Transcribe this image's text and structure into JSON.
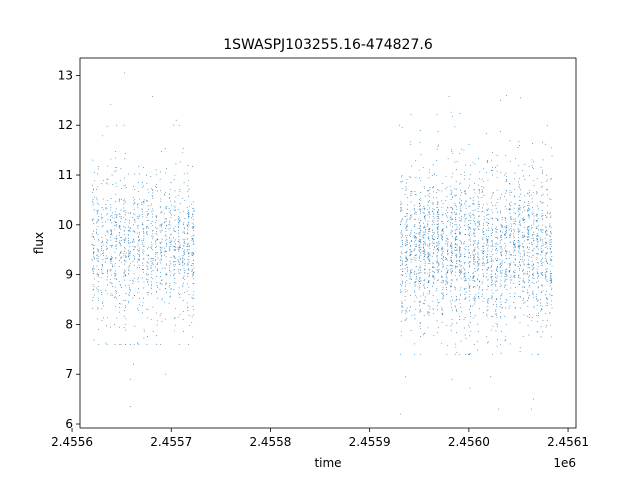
{
  "chart_data": {
    "type": "scatter",
    "title": "1SWASPJ103255.16-474827.6",
    "xlabel": "time",
    "ylabel": "flux",
    "x_offset_label": "1e6",
    "xlim": [
      2.455608,
      2.456108
    ],
    "ylim": [
      5.92,
      13.35
    ],
    "x_ticks": [
      2.4556,
      2.4557,
      2.4558,
      2.4559,
      2.456,
      2.4561
    ],
    "x_tick_labels": [
      "2.4556",
      "2.4557",
      "2.4558",
      "2.4559",
      "2.4560",
      "2.4561"
    ],
    "y_ticks": [
      6,
      7,
      8,
      9,
      10,
      11,
      12,
      13
    ],
    "y_tick_labels": [
      "6",
      "7",
      "8",
      "9",
      "10",
      "11",
      "12",
      "13"
    ],
    "grid": false,
    "legend": "none",
    "series": [
      {
        "color": "#1f77b4",
        "segments": [
          {
            "x_start": 2.455619,
            "x_end": 2.455724,
            "center": 9.55,
            "spread": 0.75,
            "range": [
              7.6,
              12.0
            ],
            "count": 1300
          },
          {
            "x_start": 2.45593,
            "x_end": 2.456085,
            "center": 9.5,
            "spread": 0.8,
            "range": [
              7.4,
              12.5
            ],
            "count": 2600
          }
        ],
        "outliers": [
          [
            2.455653,
            13.05
          ],
          [
            2.455639,
            12.42
          ],
          [
            2.455681,
            12.58
          ],
          [
            2.455705,
            12.1
          ],
          [
            2.455659,
            6.35
          ],
          [
            2.455659,
            6.9
          ],
          [
            2.455694,
            7.0
          ],
          [
            2.455662,
            7.2
          ],
          [
            2.455931,
            6.2
          ],
          [
            2.455936,
            6.95
          ],
          [
            2.45593,
            12.0
          ],
          [
            2.45598,
            12.58
          ],
          [
            2.455983,
            6.9
          ],
          [
            2.456001,
            6.72
          ],
          [
            2.456022,
            6.95
          ],
          [
            2.45603,
            6.3
          ],
          [
            2.456052,
            12.55
          ],
          [
            2.456063,
            6.3
          ],
          [
            2.456065,
            6.5
          ],
          [
            2.456038,
            12.6
          ]
        ]
      }
    ]
  }
}
